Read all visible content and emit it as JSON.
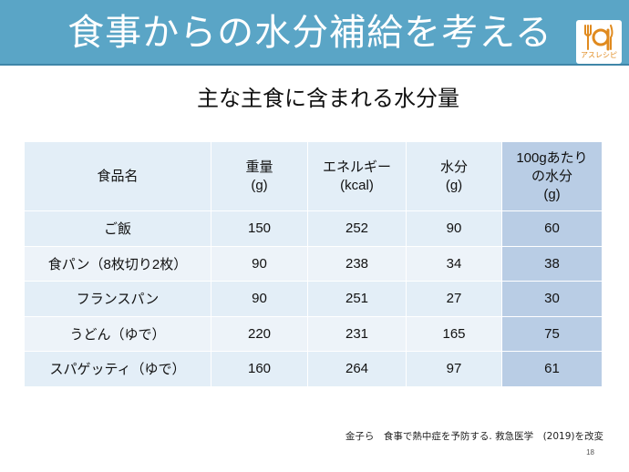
{
  "slide": {
    "title": "食事からの水分補給を考える",
    "subtitle": "主な主食に含まれる水分量",
    "logo_text": "アスレシピ",
    "citation": "金子ら　食事で熱中症を予防する. 救急医学　(2019)を改変",
    "page_number": "18",
    "colors": {
      "title_bar": "#5aa5c6",
      "table_cell": "#e3eef7",
      "highlight_column": "#b9cde5",
      "logo_accent": "#e08a1e"
    }
  },
  "table": {
    "headers": [
      [
        "食品名"
      ],
      [
        "重量",
        "(g)"
      ],
      [
        "エネルギー",
        "(kcal)"
      ],
      [
        "水分",
        "(g)"
      ],
      [
        "100gあたり",
        "の水分",
        "(g)"
      ]
    ],
    "rows": [
      [
        "ご飯",
        "150",
        "252",
        "90",
        "60"
      ],
      [
        "食パン（8枚切り2枚）",
        "90",
        "238",
        "34",
        "38"
      ],
      [
        "フランスパン",
        "90",
        "251",
        "27",
        "30"
      ],
      [
        "うどん（ゆで）",
        "220",
        "231",
        "165",
        "75"
      ],
      [
        "スパゲッティ（ゆで）",
        "160",
        "264",
        "97",
        "61"
      ]
    ]
  }
}
